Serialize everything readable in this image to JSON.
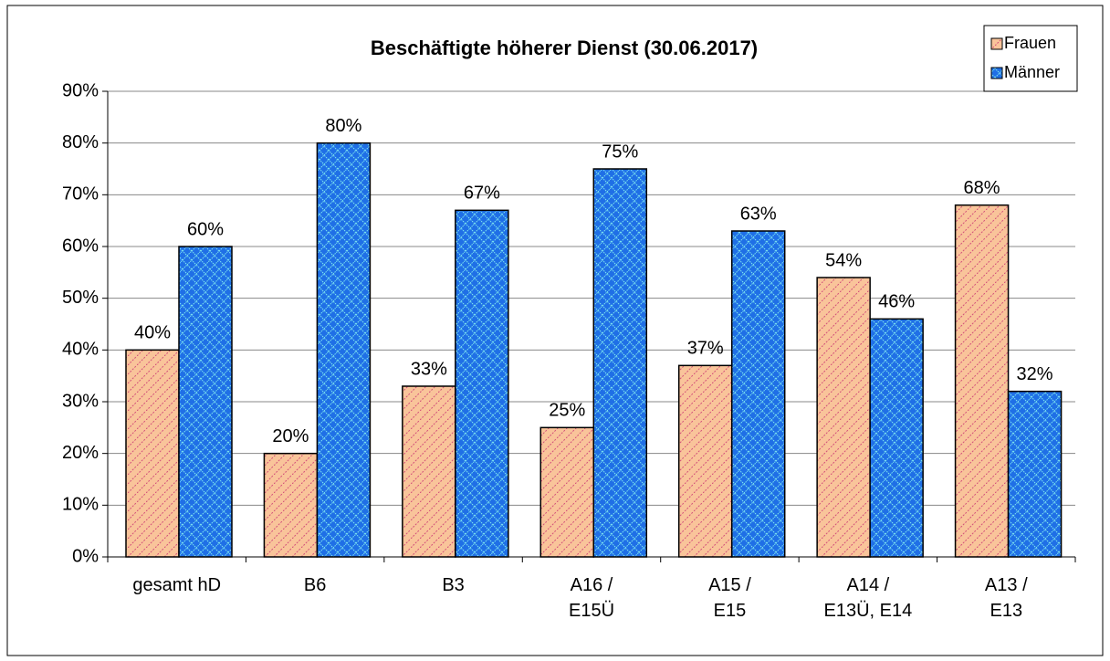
{
  "chart_data": {
    "type": "bar",
    "title": "Beschäftigte höherer Dienst (30.06.2017)",
    "categories": [
      "gesamt hD",
      "B6",
      "B3",
      "A16 /\nE15Ü",
      "A15 /\nE15",
      "A14  /\nE13Ü, E14",
      "A13 /\nE13"
    ],
    "series": [
      {
        "name": "Frauen",
        "color": "#f9c49a",
        "values": [
          40,
          20,
          33,
          25,
          37,
          54,
          68
        ],
        "value_labels": [
          "40%",
          "20%",
          "33%",
          "25%",
          "37%",
          "54%",
          "68%"
        ]
      },
      {
        "name": "Männer",
        "color": "#1f6fe6",
        "values": [
          60,
          80,
          67,
          75,
          63,
          46,
          32
        ],
        "value_labels": [
          "60%",
          "80%",
          "67%",
          "75%",
          "63%",
          "46%",
          "32%"
        ]
      }
    ],
    "ylim": [
      0,
      90
    ],
    "yticks": [
      {
        "value": 0,
        "label": "0%"
      },
      {
        "value": 10,
        "label": "10%"
      },
      {
        "value": 20,
        "label": "20%"
      },
      {
        "value": 30,
        "label": "30%"
      },
      {
        "value": 40,
        "label": "40%"
      },
      {
        "value": 50,
        "label": "50%"
      },
      {
        "value": 60,
        "label": "60%"
      },
      {
        "value": 70,
        "label": "70%"
      },
      {
        "value": 80,
        "label": "80%"
      },
      {
        "value": 90,
        "label": "90%"
      }
    ],
    "grid": true,
    "legend": "top-right"
  }
}
